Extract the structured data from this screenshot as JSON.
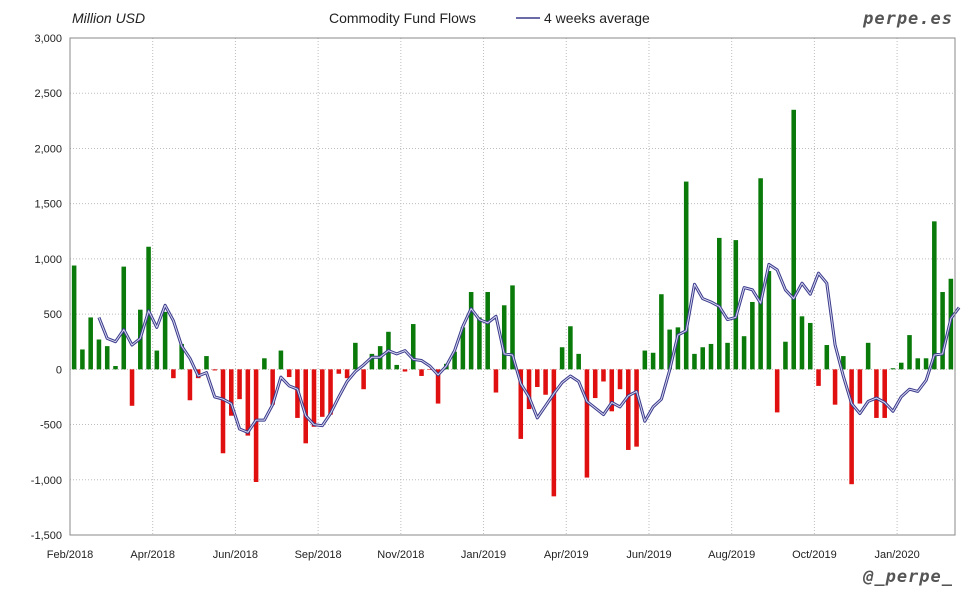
{
  "chart_data": {
    "type": "bar",
    "title": "Commodity Fund Flows",
    "unit_label": "Million USD",
    "brand": "perpe.es",
    "handle": "@_perpe_",
    "ylim": [
      -1500,
      3000
    ],
    "yticks": [
      3000,
      2500,
      2000,
      1500,
      1000,
      500,
      0,
      -500,
      -1000,
      -1500
    ],
    "ytick_labels": [
      "3,000",
      "2,500",
      "2,000",
      "1,500",
      "1,000",
      "500",
      "0",
      "-500",
      "-1,000",
      "-1,500"
    ],
    "x_labels": [
      "Feb/2018",
      "Apr/2018",
      "Jun/2018",
      "Sep/2018",
      "Nov/2018",
      "Jan/2019",
      "Apr/2019",
      "Jun/2019",
      "Aug/2019",
      "Oct/2019",
      "Jan/2020"
    ],
    "x_label_week_index": [
      0,
      10,
      20,
      30,
      40,
      50,
      60,
      70,
      80,
      90,
      100
    ],
    "grid": true,
    "legend_position": "top",
    "colors": {
      "positive": "#0a7a0a",
      "negative": "#e01010",
      "average_line": "#3a3a8c",
      "grid": "#bdbdbd"
    },
    "series": [
      {
        "name": "Commodity Fund Flows",
        "type": "bar",
        "values": [
          940,
          180,
          470,
          270,
          210,
          30,
          930,
          -330,
          540,
          1110,
          170,
          520,
          -80,
          230,
          -280,
          -80,
          120,
          -10,
          -760,
          -420,
          -270,
          -600,
          -1020,
          100,
          -320,
          170,
          -70,
          -440,
          -670,
          -520,
          -430,
          -410,
          -40,
          -80,
          240,
          -180,
          140,
          210,
          340,
          40,
          -20,
          410,
          -60,
          -5,
          -310,
          50,
          160,
          380,
          700,
          470,
          700,
          -210,
          580,
          760,
          -630,
          -360,
          -160,
          -230,
          -1150,
          200,
          390,
          140,
          -980,
          -260,
          -110,
          -380,
          -180,
          -730,
          -700,
          170,
          150,
          680,
          360,
          380,
          1700,
          140,
          200,
          230,
          1190,
          240,
          1170,
          300,
          610,
          1730,
          890,
          -390,
          250,
          2350,
          480,
          420,
          -150,
          220,
          -320,
          120,
          -1040,
          -310,
          240,
          -440,
          -440,
          10,
          60,
          310,
          100,
          100,
          1340,
          700,
          820
        ]
      },
      {
        "name": "4 weeks average",
        "type": "line",
        "start_index": 3,
        "values": [
          470,
          280,
          250,
          360,
          220,
          280,
          530,
          380,
          580,
          440,
          210,
          100,
          -60,
          -30,
          -250,
          -270,
          -310,
          -540,
          -570,
          -460,
          -460,
          -320,
          -70,
          -150,
          -180,
          -420,
          -500,
          -510,
          -400,
          -250,
          -110,
          -20,
          40,
          110,
          110,
          170,
          140,
          170,
          90,
          80,
          30,
          -50,
          30,
          170,
          390,
          550,
          450,
          420,
          480,
          140,
          130,
          -130,
          -250,
          -440,
          -330,
          -220,
          -120,
          -60,
          -110,
          -290,
          -350,
          -410,
          -300,
          -340,
          -240,
          -200,
          -470,
          -340,
          -270,
          -10,
          310,
          350,
          770,
          640,
          610,
          570,
          450,
          470,
          740,
          720,
          600,
          950,
          900,
          720,
          640,
          780,
          680,
          870,
          780,
          220,
          -60,
          -310,
          -400,
          -290,
          -260,
          -300,
          -380,
          -250,
          -180,
          -200,
          -100,
          130,
          140,
          460,
          560
        ]
      }
    ]
  }
}
